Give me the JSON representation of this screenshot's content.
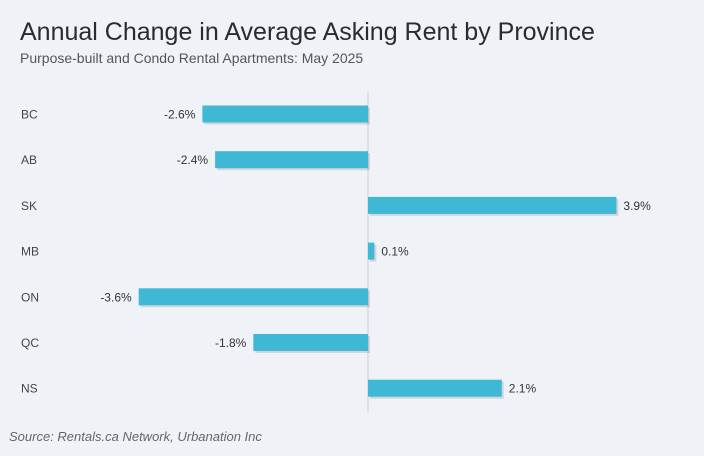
{
  "title": "Annual Change in Average Asking Rent by Province",
  "subtitle": "Purpose-built and Condo Rental Apartments: May 2025",
  "source": "Source: Rentals.ca Network, Urbanation Inc",
  "chart_data": {
    "type": "bar",
    "orientation": "horizontal",
    "title": "Annual Change in Average Asking Rent by Province",
    "subtitle": "Purpose-built and Condo Rental Apartments: May 2025",
    "categories": [
      "BC",
      "AB",
      "SK",
      "MB",
      "ON",
      "QC",
      "NS"
    ],
    "values": [
      -2.6,
      -2.4,
      3.9,
      0.1,
      -3.6,
      -1.8,
      2.1
    ],
    "labels": [
      "-2.6%",
      "-2.4%",
      "3.9%",
      "0.1%",
      "-3.6%",
      "-1.8%",
      "2.1%"
    ],
    "xlim": [
      -4.0,
      4.0
    ],
    "bar_color": "#3fb8d6",
    "zero_line_color": "#cccccc",
    "grid": false,
    "legend": "none"
  }
}
